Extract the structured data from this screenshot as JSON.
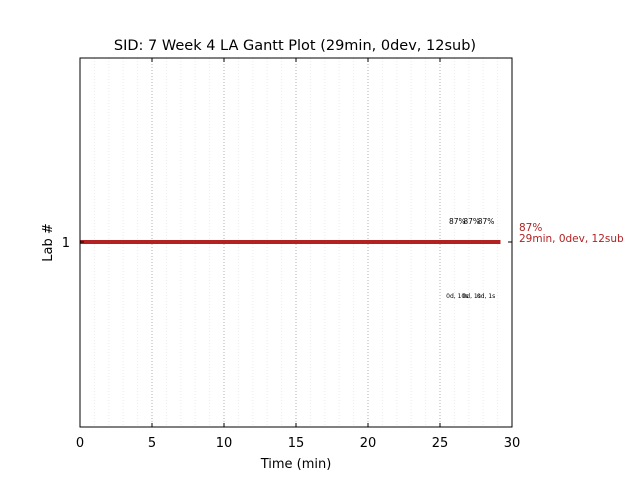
{
  "chart_data": {
    "type": "bar",
    "title": "SID: 7 Week 4 LA Gantt Plot (29min, 0dev, 12sub)",
    "xlabel": "Time (min)",
    "ylabel": "Lab #",
    "xlim": [
      0,
      30
    ],
    "xticks": [
      "0",
      "5",
      "10",
      "15",
      "20",
      "25",
      "30"
    ],
    "yticks": [
      "1"
    ],
    "grid": {
      "major_x": true,
      "minor_x": true,
      "style": "dotted"
    },
    "bars": [
      {
        "lab": 1,
        "start": 0,
        "end": 29.2,
        "color": "#b22222"
      }
    ],
    "bar_annotation": {
      "line1": "87%",
      "line2": "29min, 0dev, 12sub",
      "color": "#b22222"
    },
    "submission_annotations": [
      {
        "x": 26.2,
        "above": "87%",
        "below": "0d, 10s"
      },
      {
        "x": 27.2,
        "above": "87%",
        "below": "0d, 1s"
      },
      {
        "x": 28.2,
        "above": "87%",
        "below": "0d, 1s"
      }
    ]
  }
}
